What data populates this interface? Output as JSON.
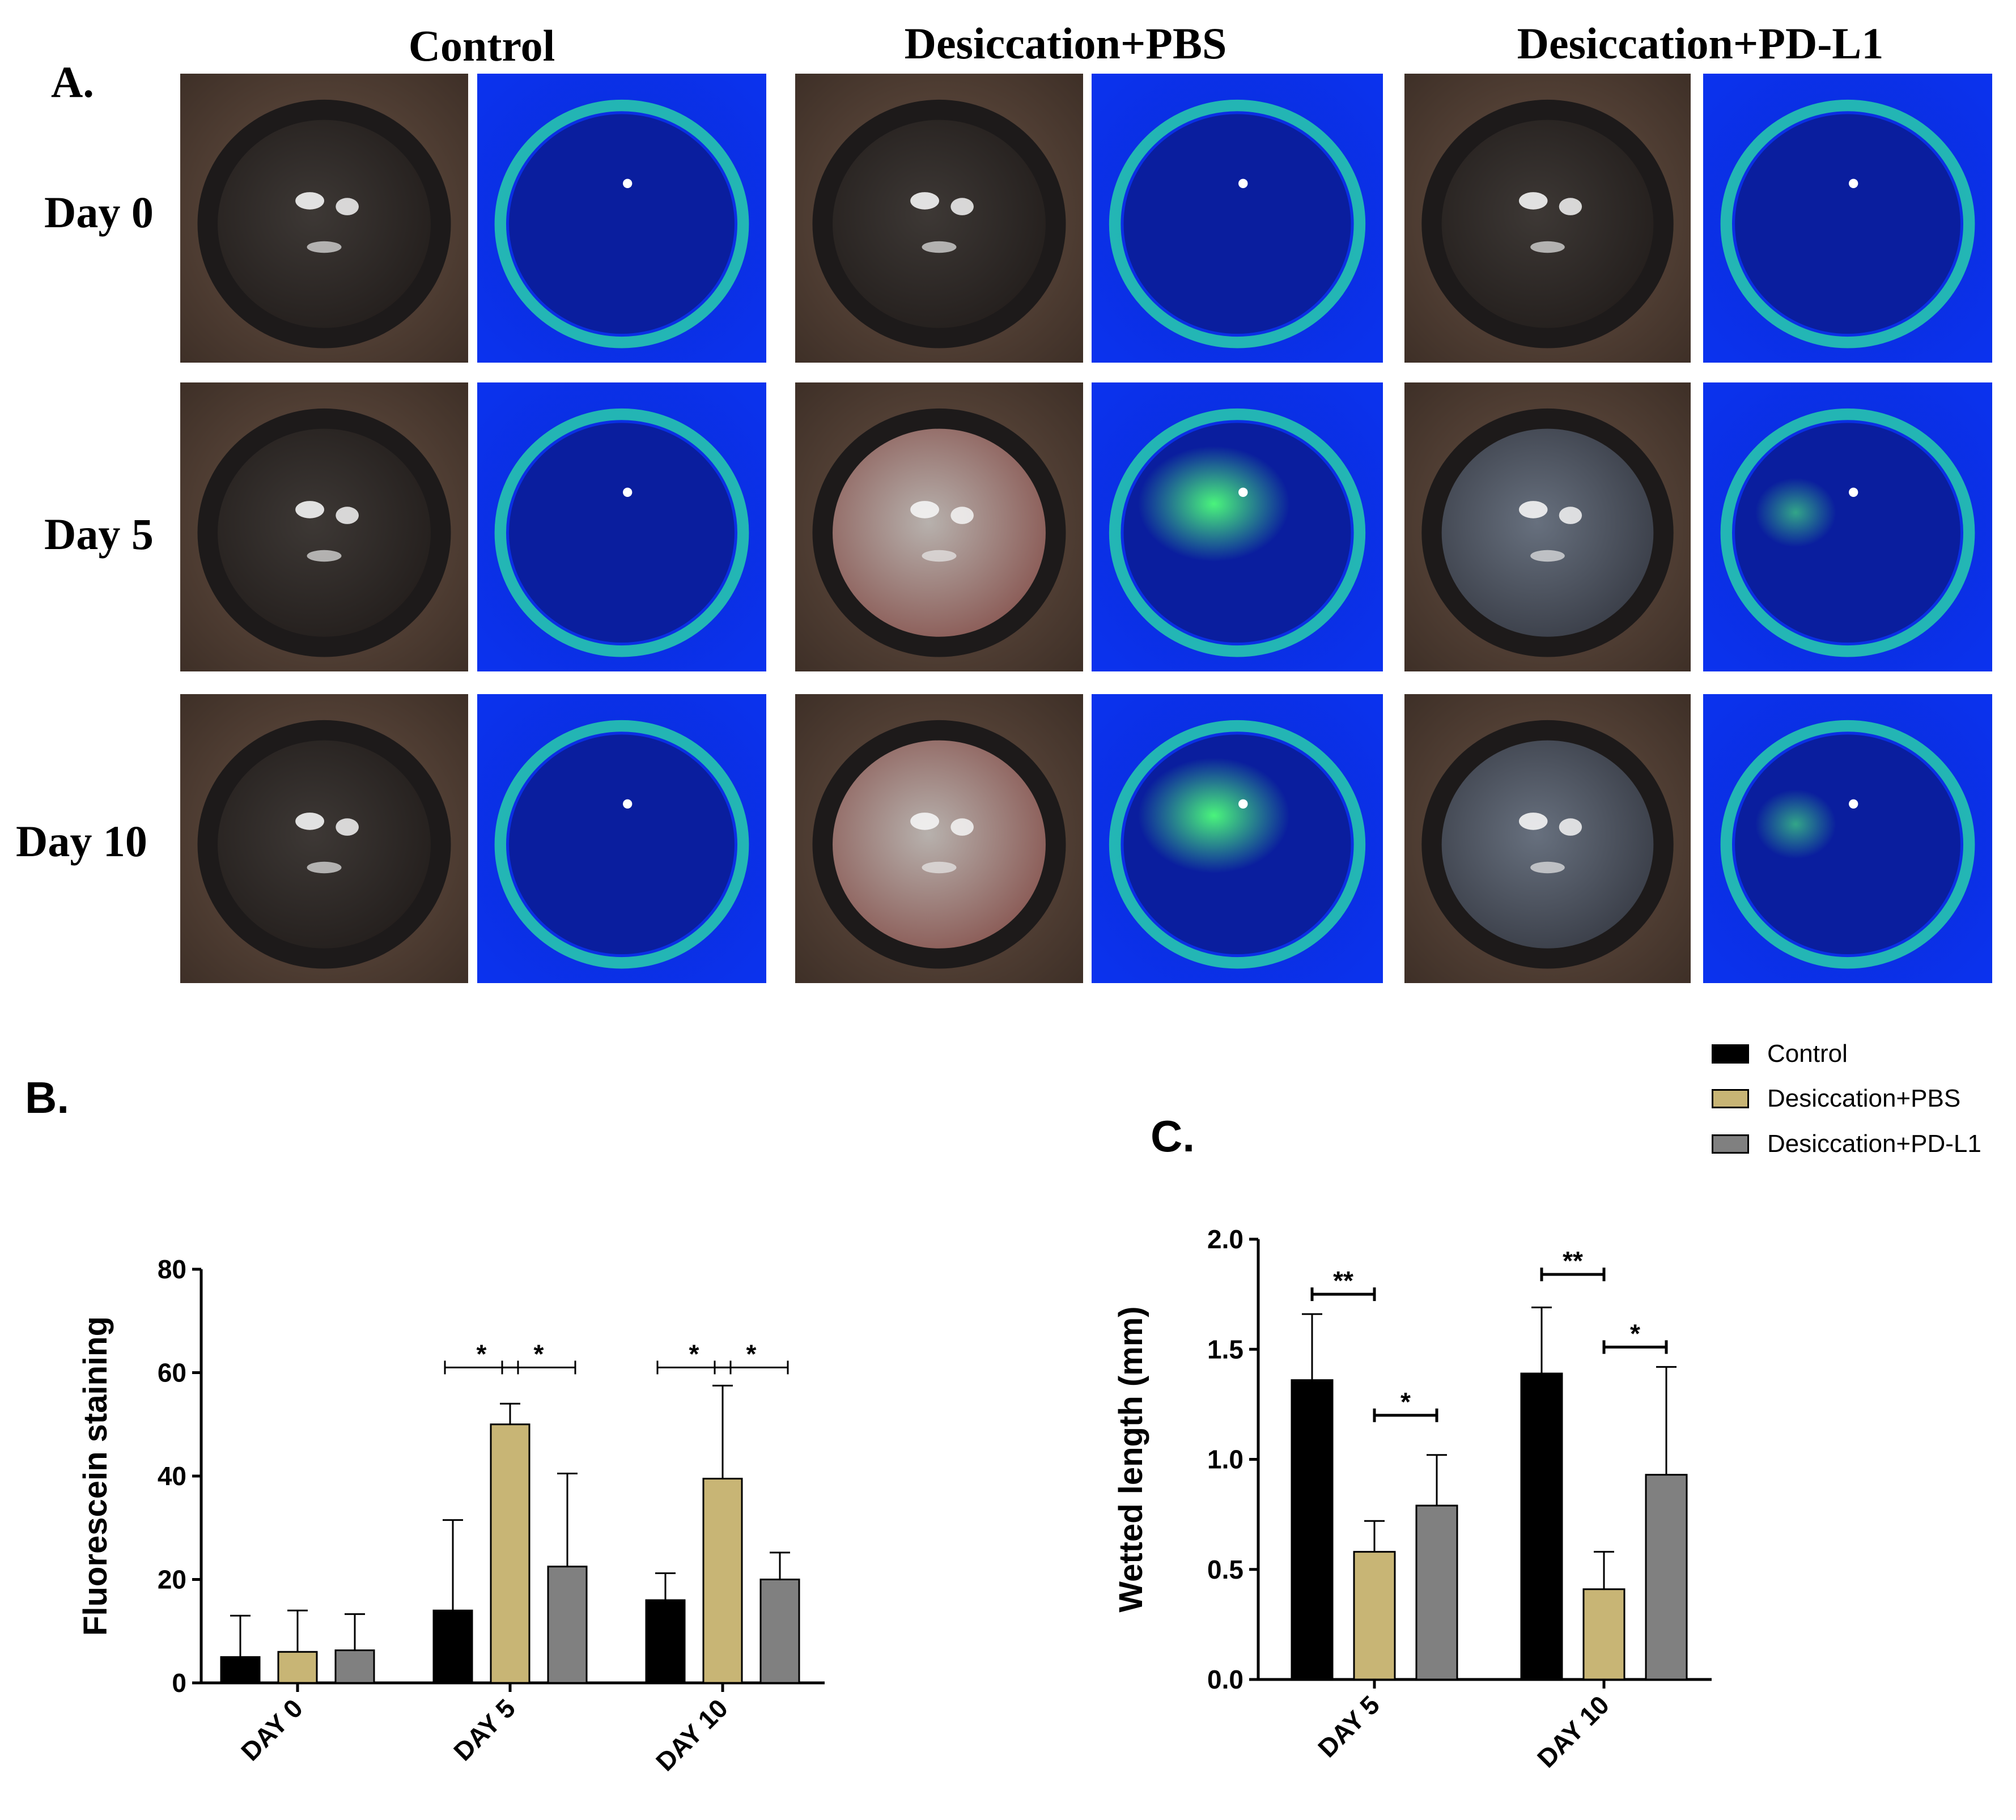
{
  "figure": {
    "panel_a_label": "A.",
    "panel_b_label": "B.",
    "panel_c_label": "C.",
    "column_titles": [
      "Control",
      "Desiccation+PBS",
      "Desiccation+PD-L1"
    ],
    "row_labels": [
      "Day 0",
      "Day 5",
      "Day 10"
    ],
    "photo_panels": [
      {
        "group": "Control",
        "day": "Day 0",
        "kind": "brightfield",
        "opacity": "clear"
      },
      {
        "group": "Control",
        "day": "Day 0",
        "kind": "fluorescein",
        "staining": "minimal"
      },
      {
        "group": "Desiccation+PBS",
        "day": "Day 0",
        "kind": "brightfield",
        "opacity": "clear"
      },
      {
        "group": "Desiccation+PBS",
        "day": "Day 0",
        "kind": "fluorescein",
        "staining": "minimal"
      },
      {
        "group": "Desiccation+PD-L1",
        "day": "Day 0",
        "kind": "brightfield",
        "opacity": "clear"
      },
      {
        "group": "Desiccation+PD-L1",
        "day": "Day 0",
        "kind": "fluorescein",
        "staining": "minimal"
      },
      {
        "group": "Control",
        "day": "Day 5",
        "kind": "brightfield",
        "opacity": "clear"
      },
      {
        "group": "Control",
        "day": "Day 5",
        "kind": "fluorescein",
        "staining": "minimal"
      },
      {
        "group": "Desiccation+PBS",
        "day": "Day 5",
        "kind": "brightfield",
        "opacity": "severe"
      },
      {
        "group": "Desiccation+PBS",
        "day": "Day 5",
        "kind": "fluorescein",
        "staining": "severe"
      },
      {
        "group": "Desiccation+PD-L1",
        "day": "Day 5",
        "kind": "brightfield",
        "opacity": "mild"
      },
      {
        "group": "Desiccation+PD-L1",
        "day": "Day 5",
        "kind": "fluorescein",
        "staining": "mild"
      },
      {
        "group": "Control",
        "day": "Day 10",
        "kind": "brightfield",
        "opacity": "clear"
      },
      {
        "group": "Control",
        "day": "Day 10",
        "kind": "fluorescein",
        "staining": "minimal"
      },
      {
        "group": "Desiccation+PBS",
        "day": "Day 10",
        "kind": "brightfield",
        "opacity": "severe"
      },
      {
        "group": "Desiccation+PBS",
        "day": "Day 10",
        "kind": "fluorescein",
        "staining": "severe"
      },
      {
        "group": "Desiccation+PD-L1",
        "day": "Day 10",
        "kind": "brightfield",
        "opacity": "mild"
      },
      {
        "group": "Desiccation+PD-L1",
        "day": "Day 10",
        "kind": "fluorescein",
        "staining": "mild"
      }
    ]
  },
  "legend": {
    "items": [
      {
        "label": "Control",
        "color": "#000000"
      },
      {
        "label": "Desiccation+PBS",
        "color": "#C8B575"
      },
      {
        "label": "Desiccation+PD-L1",
        "color": "#808080"
      }
    ]
  },
  "chart_data": [
    {
      "id": "B",
      "type": "bar",
      "title": "",
      "xlabel": "",
      "ylabel": "Fluorescein staining",
      "ylim": [
        0,
        80
      ],
      "yticks": [
        0,
        20,
        40,
        60,
        80
      ],
      "categories": [
        "DAY 0",
        "DAY 5",
        "DAY 10"
      ],
      "series": [
        {
          "name": "Control",
          "color": "#000000",
          "values": [
            5,
            14,
            16
          ],
          "errors": [
            8,
            17.5,
            5.2
          ]
        },
        {
          "name": "Desiccation+PBS",
          "color": "#C8B575",
          "values": [
            6,
            50,
            39.5
          ],
          "errors": [
            8,
            4,
            18
          ]
        },
        {
          "name": "Desiccation+PD-L1",
          "color": "#808080",
          "values": [
            6.3,
            22.5,
            20
          ],
          "errors": [
            7,
            18,
            5.2
          ]
        }
      ],
      "significance": [
        {
          "category": 1,
          "from": 0,
          "to": 1,
          "y": 61,
          "label": "*"
        },
        {
          "category": 1,
          "from": 1,
          "to": 2,
          "y": 61,
          "label": "*"
        },
        {
          "category": 2,
          "from": 0,
          "to": 1,
          "y": 61,
          "label": "*"
        },
        {
          "category": 2,
          "from": 1,
          "to": 2,
          "y": 61,
          "label": "*"
        }
      ]
    },
    {
      "id": "C",
      "type": "bar",
      "title": "",
      "xlabel": "",
      "ylabel": "Wetted length (mm)",
      "ylim": [
        0,
        2
      ],
      "yticks": [
        "0.0",
        "0.5",
        "1.0",
        "1.5",
        "2.0"
      ],
      "categories": [
        "DAY 5",
        "DAY 10"
      ],
      "series": [
        {
          "name": "Control",
          "color": "#000000",
          "values": [
            1.36,
            1.39
          ],
          "errors": [
            0.3,
            0.3
          ]
        },
        {
          "name": "Desiccation+PBS",
          "color": "#C8B575",
          "values": [
            0.58,
            0.41
          ],
          "errors": [
            0.14,
            0.17
          ]
        },
        {
          "name": "Desiccation+PD-L1",
          "color": "#808080",
          "values": [
            0.79,
            0.93
          ],
          "errors": [
            0.23,
            0.49
          ]
        }
      ],
      "significance": [
        {
          "category": 0,
          "from": 0,
          "to": 1,
          "y": 1.75,
          "label": "**"
        },
        {
          "category": 0,
          "from": 1,
          "to": 2,
          "y": 1.2,
          "label": "*"
        },
        {
          "category": 1,
          "from": 0,
          "to": 1,
          "y": 1.84,
          "label": "**"
        },
        {
          "category": 1,
          "from": 1,
          "to": 2,
          "y": 1.51,
          "label": "*"
        }
      ]
    }
  ]
}
